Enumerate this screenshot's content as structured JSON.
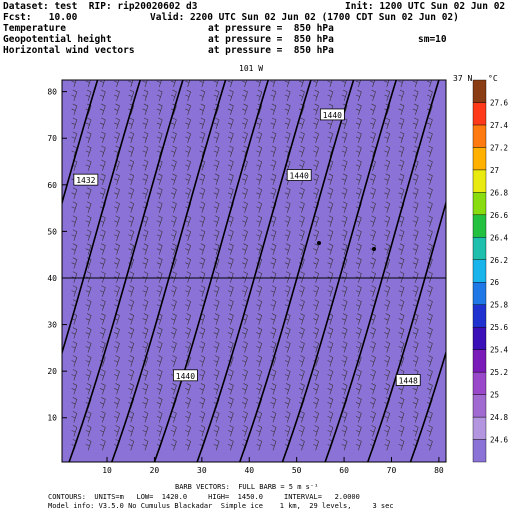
{
  "header": {
    "dataset": "Dataset: test  RIP: rip20020602 d3",
    "init": "Init: 1200 UTC Sun 02 Jun 02",
    "fcst": "Fcst:   10.00",
    "valid": "Valid: 2200 UTC Sun 02 Jun 02 (1700 CDT Sun 02 Jun 02)",
    "fields": [
      {
        "name": "Temperature",
        "level": "at pressure =  850 hPa",
        "extra": ""
      },
      {
        "name": "Geopotential height",
        "level": "at pressure =  850 hPa",
        "extra": "sm=10"
      },
      {
        "name": "Horizontal wind vectors",
        "level": "at pressure =  850 hPa",
        "extra": ""
      }
    ]
  },
  "map": {
    "top_label": "101 W",
    "right_label": "37 N",
    "reference_line_y": 40,
    "x_ticks": [
      10,
      20,
      30,
      40,
      50,
      60,
      70,
      80
    ],
    "y_ticks": [
      10,
      20,
      30,
      40,
      50,
      60,
      70,
      80
    ],
    "xlim": [
      0.5,
      81.5
    ],
    "ylim": [
      0.5,
      82.5
    ],
    "color_scale": {
      "unit": "°C",
      "levels": [
        24.6,
        24.8,
        25,
        25.2,
        25.4,
        25.6,
        25.8,
        26,
        26.2,
        26.4,
        26.6,
        26.8,
        27,
        27.2,
        27.4,
        27.6
      ],
      "colors": [
        "#8b72d6",
        "#b496e0",
        "#a06ad0",
        "#9848c8",
        "#7a1ab8",
        "#3c10b8",
        "#1f32d0",
        "#1f78e6",
        "#1ab4ec",
        "#1fbfae",
        "#24c040",
        "#88dc10",
        "#e8ea10",
        "#ffb000",
        "#ff7a10",
        "#ff3a1a",
        "#8a3c14"
      ]
    },
    "contour_labels": [
      {
        "text": "1432",
        "x": 3,
        "y": 61
      },
      {
        "text": "1440",
        "x": 55,
        "y": 75
      },
      {
        "text": "1440",
        "x": 48,
        "y": 62
      },
      {
        "text": "1440",
        "x": 24,
        "y": 19
      },
      {
        "text": "1448",
        "x": 71,
        "y": 18
      }
    ]
  },
  "footer": {
    "barb": "BARB VECTORS:  FULL BARB = 5 m s⁻¹",
    "contours": "CONTOURS:  UNITS=m   LOW=  1420.0     HIGH=  1450.0     INTERVAL=   2.0000",
    "model": "Model info: V3.5.0 No Cumulus Blackadar  Simple ice    1 km,  29 levels,     3 sec"
  }
}
